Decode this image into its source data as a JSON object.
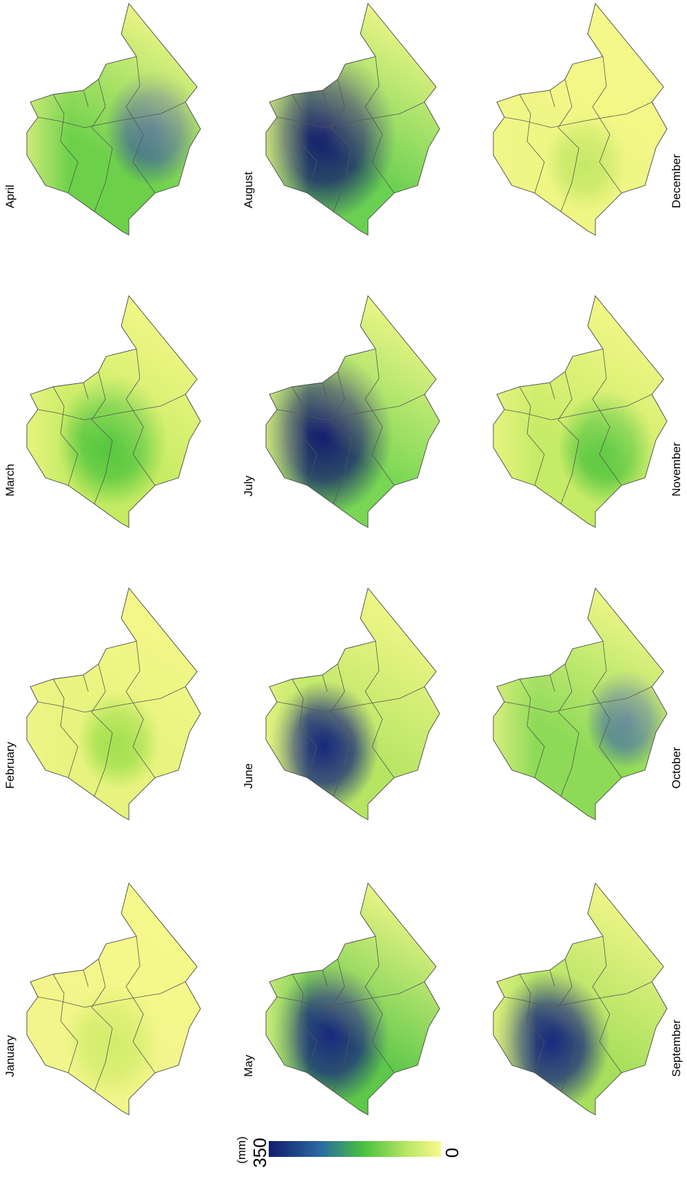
{
  "panels": [
    {
      "label": "January",
      "color": "#f2f68a",
      "accent": "#d2ec6c"
    },
    {
      "label": "February",
      "color": "#e6f37e",
      "accent": "#9fdf4c"
    },
    {
      "label": "March",
      "color": "#c4eb62",
      "accent": "#4cc43c"
    },
    {
      "label": "April",
      "color": "#6cd04a",
      "accent": "#1e4f96"
    },
    {
      "label": "May",
      "color": "#5ec84a",
      "accent": "#18297e"
    },
    {
      "label": "June",
      "color": "#b6e564",
      "accent": "#18287c"
    },
    {
      "label": "July",
      "color": "#78d654",
      "accent": "#121b6e"
    },
    {
      "label": "August",
      "color": "#6ad052",
      "accent": "#121b6e"
    },
    {
      "label": "September",
      "color": "#a6df5c",
      "accent": "#18297e"
    },
    {
      "label": "October",
      "color": "#8cda56",
      "accent": "#2a5fa0"
    },
    {
      "label": "November",
      "color": "#c6eb66",
      "accent": "#4ec43e"
    },
    {
      "label": "December",
      "color": "#eff684",
      "accent": "#c4e866"
    }
  ],
  "colorbar": {
    "unit": "(mm)",
    "max": 350,
    "min": 0
  }
}
